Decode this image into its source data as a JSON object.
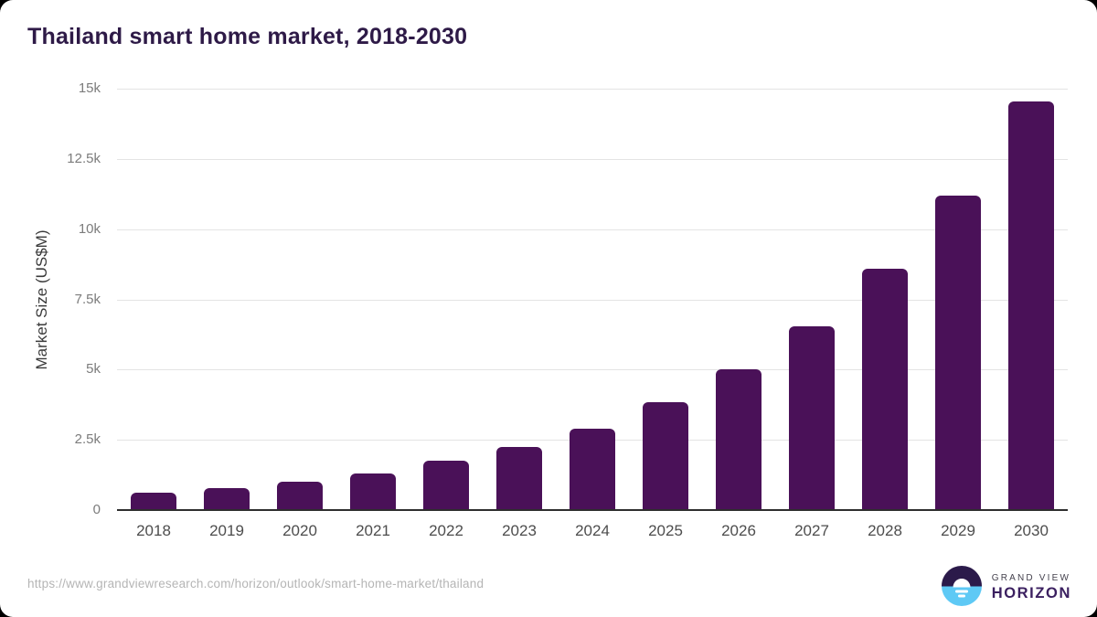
{
  "page": {
    "title": "Thailand smart home market, 2018-2030"
  },
  "chart_data": {
    "type": "bar",
    "title": "Thailand smart home market, 2018-2030",
    "xlabel": "",
    "ylabel": "Market Size (US$M)",
    "categories": [
      "2018",
      "2019",
      "2020",
      "2021",
      "2022",
      "2023",
      "2024",
      "2025",
      "2026",
      "2027",
      "2028",
      "2029",
      "2030"
    ],
    "values": [
      620,
      780,
      1000,
      1300,
      1750,
      2250,
      2900,
      3850,
      5000,
      6550,
      8600,
      11200,
      14550
    ],
    "ylim": [
      0,
      15000
    ],
    "yticks": [
      {
        "value": 0,
        "label": "0"
      },
      {
        "value": 2500,
        "label": "2.5k"
      },
      {
        "value": 5000,
        "label": "5k"
      },
      {
        "value": 7500,
        "label": "7.5k"
      },
      {
        "value": 10000,
        "label": "10k"
      },
      {
        "value": 12500,
        "label": "12.5k"
      },
      {
        "value": 15000,
        "label": "15k"
      }
    ],
    "grid": true,
    "legend": false,
    "bar_color": "#4a1158"
  },
  "colors": {
    "bar": "#4a1158",
    "title_text": "#2e1a47",
    "grid": "#e4e4e4",
    "axis_line": "#2e2e2e",
    "ytick_text": "#7c7c7c",
    "xtick_text": "#4d4d4d",
    "url_text": "#b5b5b5",
    "logo_dark": "#2b1a4a",
    "logo_blue": "#5ec9f5"
  },
  "footer": {
    "source_url": "https://www.grandviewresearch.com/horizon/outlook/smart-home-market/thailand",
    "brand_line1": "GRAND VIEW",
    "brand_line2": "HORIZON"
  }
}
